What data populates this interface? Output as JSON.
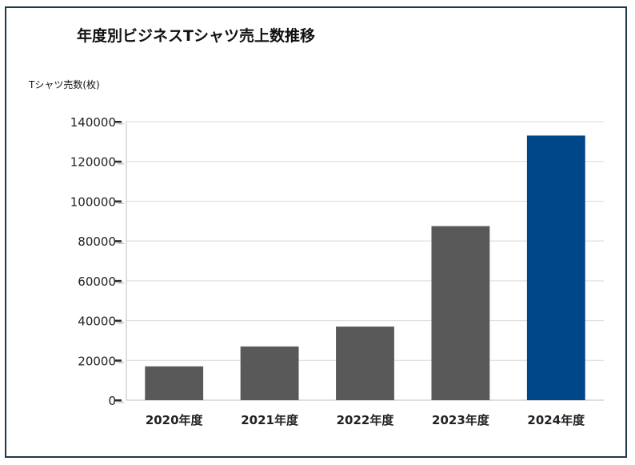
{
  "chart_data": {
    "type": "bar",
    "title": "年度別ビジネスTシャツ売上数推移",
    "ylabel": "Tシャツ売数(枚)",
    "xlabel": "",
    "categories": [
      "2020年度",
      "2021年度",
      "2022年度",
      "2023年度",
      "2024年度"
    ],
    "values": [
      17000,
      27000,
      37000,
      87500,
      133000
    ],
    "ylim": [
      0,
      140000
    ],
    "yticks": [
      0,
      20000,
      40000,
      60000,
      80000,
      100000,
      120000,
      140000
    ],
    "grid": true,
    "legend": "none",
    "colors": {
      "default_bar": "#595959",
      "highlight_bar": "#00478a",
      "grid": "#d9d9d9"
    },
    "highlight_index": 4
  }
}
